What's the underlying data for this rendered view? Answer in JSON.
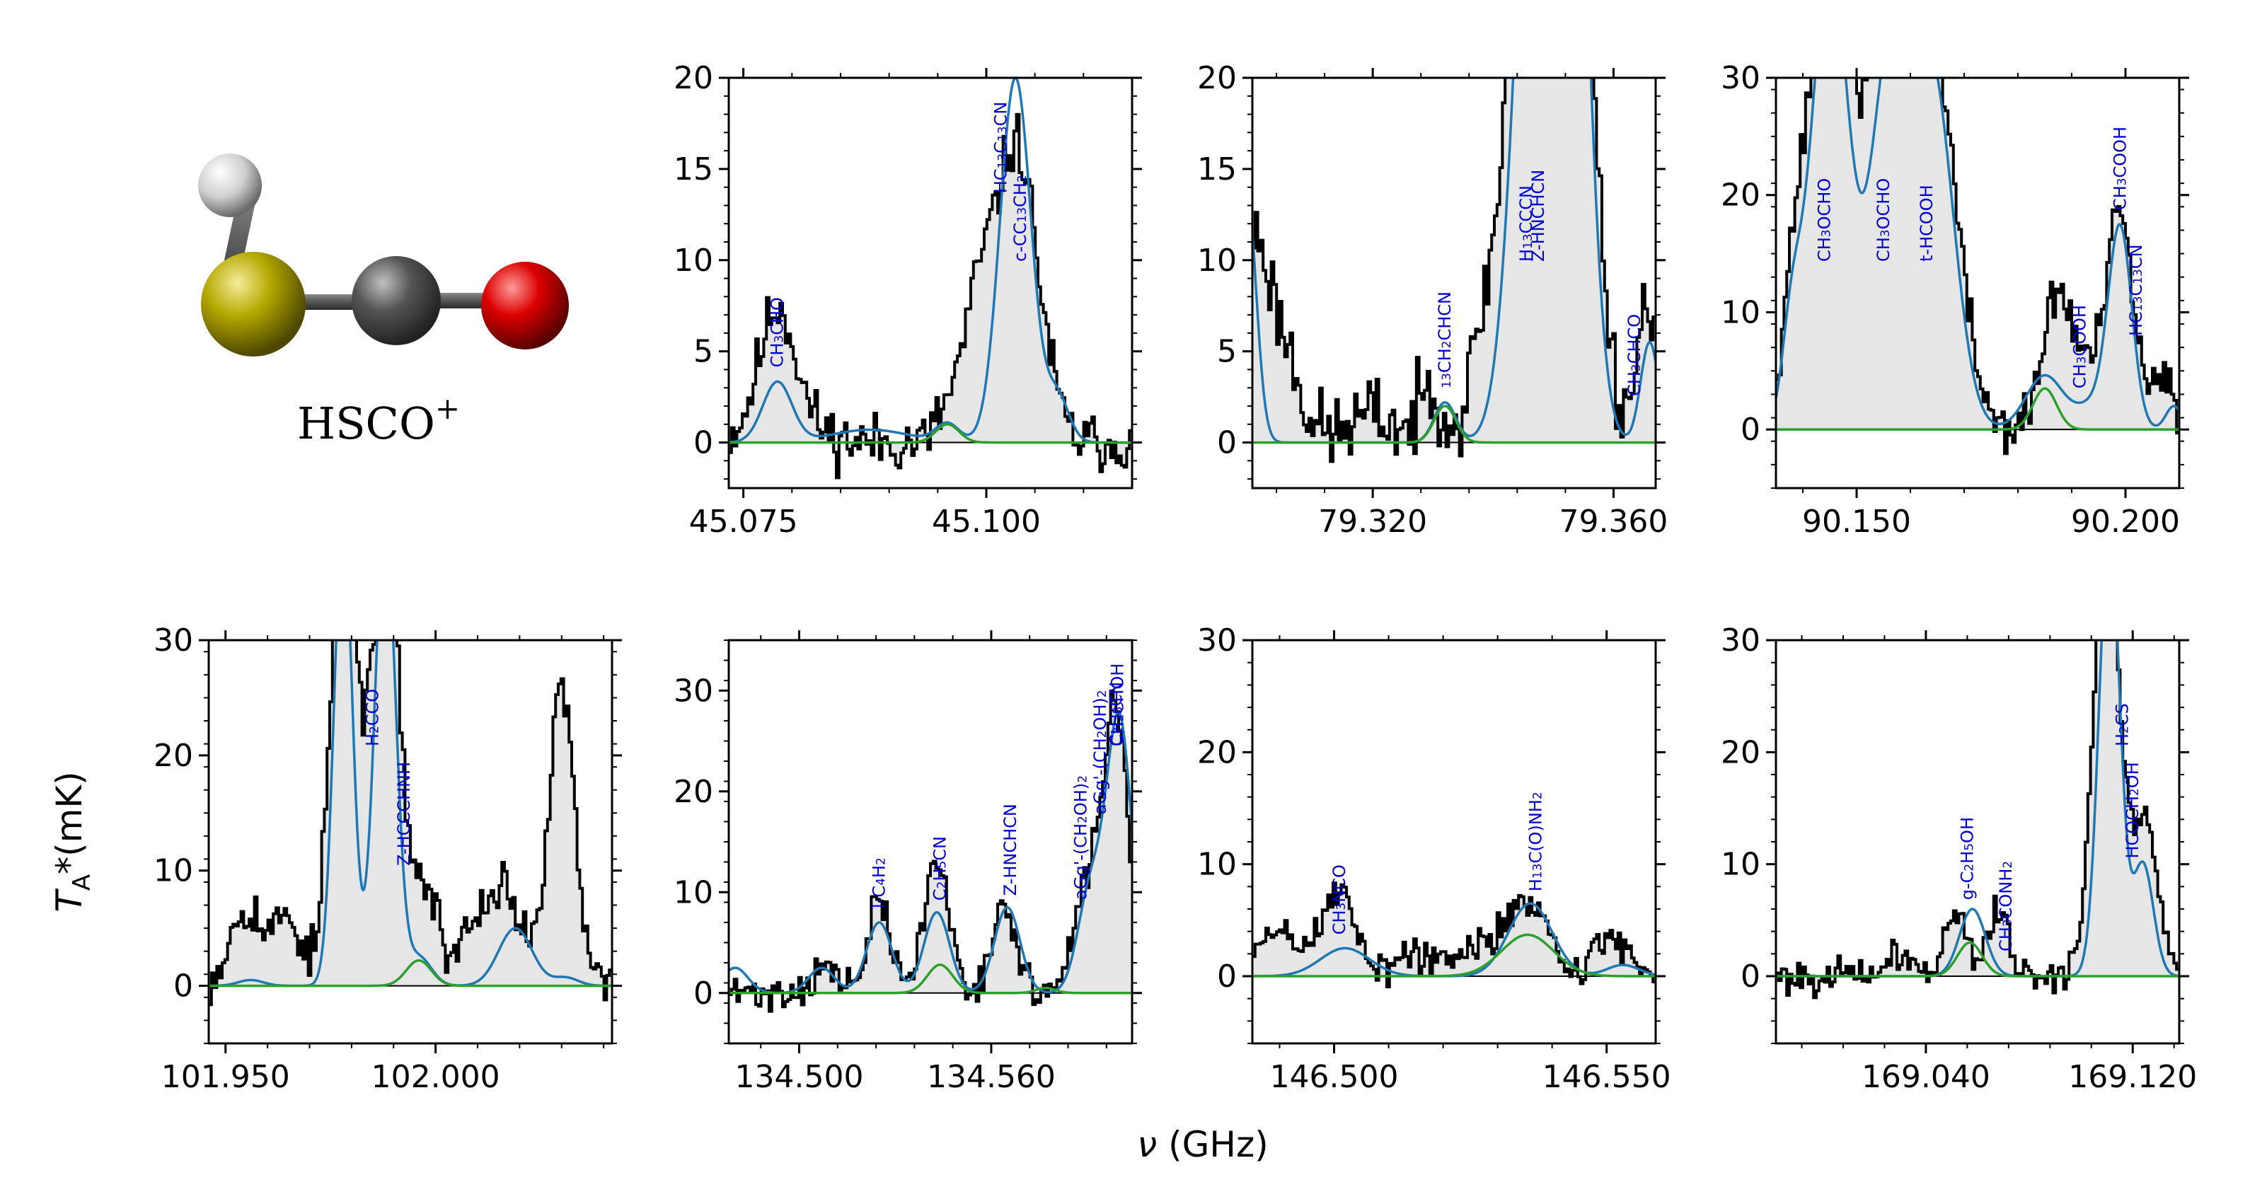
{
  "figure": {
    "molecule_label": "HSCO",
    "molecule_charge": "+",
    "xlabel_symbol": "ν",
    "xlabel_unit": "(GHz)",
    "ylabel_main": "T",
    "ylabel_sub": "A",
    "ylabel_rest": "*(mK)",
    "colors": {
      "observed": "#000000",
      "fill": "#e6e6e6",
      "total_model": "#1f77b4",
      "hsco_model": "#2ca02c",
      "line_labels": "#0000cc",
      "atom_h": "#e0e0e0",
      "atom_s": "#b5a800",
      "atom_c": "#555555",
      "atom_o": "#dd0000"
    }
  },
  "chart_data": [
    {
      "type": "line",
      "xlim": [
        45.0735,
        45.115
      ],
      "ylim": [
        -2.5,
        20
      ],
      "xticks": [
        "45.075",
        "45.100"
      ],
      "yticks": [
        "0",
        "5",
        "10",
        "15",
        "20"
      ],
      "series": [
        {
          "name": "observed",
          "peaks": [
            [
              45.0785,
              6.0,
              0.0018
            ],
            [
              45.079,
              1.5,
              0.003
            ],
            [
              45.096,
              1.2,
              0.0012
            ],
            [
              45.0995,
              8.5,
              0.0018
            ],
            [
              45.1032,
              15.0,
              0.0018
            ],
            [
              45.106,
              2.5,
              0.0015
            ]
          ],
          "noise": 1.6,
          "seed": 11
        },
        {
          "name": "total model",
          "peaks": [
            [
              45.0785,
              3.3,
              0.0015
            ],
            [
              45.088,
              0.7,
              0.004
            ],
            [
              45.096,
              1.0,
              0.0012
            ],
            [
              45.103,
              20.0,
              0.0016
            ],
            [
              45.1073,
              2.5,
              0.0012
            ]
          ]
        },
        {
          "name": "HSCO+ model",
          "peaks": [
            [
              45.096,
              1.0,
              0.0012
            ]
          ]
        }
      ],
      "labels": [
        {
          "x": 45.0785,
          "text": [
            "CH3CHO"
          ]
        },
        {
          "x": 45.1015,
          "text": [
            "HC13C13CN"
          ]
        },
        {
          "x": 45.1035,
          "text": [
            "c-CC13CH2"
          ]
        }
      ]
    },
    {
      "type": "line",
      "xlim": [
        79.3,
        79.367
      ],
      "ylim": [
        -2.5,
        20
      ],
      "xticks": [
        "79.320",
        "79.360"
      ],
      "yticks": [
        "0",
        "5",
        "10",
        "15",
        "20"
      ],
      "series": [
        {
          "name": "observed",
          "peaks": [
            [
              79.3,
              10.0,
              0.0025
            ],
            [
              79.305,
              5.0,
              0.003
            ],
            [
              79.32,
              1.5,
              0.004
            ],
            [
              79.33,
              3.0,
              0.002
            ],
            [
              79.338,
              4.0,
              0.002
            ],
            [
              79.347,
              40.0,
              0.004
            ],
            [
              79.3525,
              40.0,
              0.0035
            ],
            [
              79.366,
              8.0,
              0.002
            ]
          ],
          "noise": 2.2,
          "seed": 23
        },
        {
          "name": "total model",
          "peaks": [
            [
              79.299,
              14.0,
              0.0016
            ],
            [
              79.332,
              2.2,
              0.0018
            ],
            [
              79.3475,
              40.0,
              0.0035
            ],
            [
              79.3525,
              40.0,
              0.003
            ],
            [
              79.366,
              5.5,
              0.0015
            ]
          ]
        },
        {
          "name": "HSCO+ model",
          "peaks": [
            [
              79.332,
              2.0,
              0.0018
            ]
          ]
        }
      ],
      "labels": [
        {
          "x": 79.332,
          "text": [
            "13CH2CHCN"
          ]
        },
        {
          "x": 79.3455,
          "text": [
            "H13CCCN"
          ]
        },
        {
          "x": 79.3475,
          "text": [
            "Z-HNCHCN"
          ]
        },
        {
          "x": 79.3635,
          "text": [
            "CH3CHCO"
          ]
        }
      ]
    },
    {
      "type": "line",
      "xlim": [
        90.135,
        90.21
      ],
      "ylim": [
        -5,
        30
      ],
      "xticks": [
        "90.150",
        "90.200"
      ],
      "yticks": [
        "0",
        "10",
        "20",
        "30"
      ],
      "series": [
        {
          "name": "observed",
          "peaks": [
            [
              90.138,
              8.0,
              0.002
            ],
            [
              90.145,
              42.0,
              0.004
            ],
            [
              90.156,
              32.0,
              0.004
            ],
            [
              90.164,
              32.0,
              0.0045
            ],
            [
              90.187,
              10.5,
              0.0025
            ],
            [
              90.192,
              5.0,
              0.003
            ],
            [
              90.199,
              18.0,
              0.0025
            ],
            [
              90.207,
              4.0,
              0.002
            ]
          ],
          "noise": 2.2,
          "seed": 37
        },
        {
          "name": "total model",
          "peaks": [
            [
              90.138,
              8.0,
              0.0018
            ],
            [
              90.145,
              40.0,
              0.0035
            ],
            [
              90.156,
              30.0,
              0.0035
            ],
            [
              90.164,
              30.0,
              0.004
            ],
            [
              90.185,
              4.6,
              0.0035
            ],
            [
              90.194,
              2.0,
              0.003
            ],
            [
              90.199,
              17.0,
              0.0022
            ],
            [
              90.209,
              2.0,
              0.0015
            ]
          ]
        },
        {
          "name": "HSCO+ model",
          "peaks": [
            [
              90.185,
              3.5,
              0.0022
            ]
          ]
        }
      ],
      "labels": [
        {
          "x": 90.144,
          "text": [
            "CH3OCHO"
          ]
        },
        {
          "x": 90.155,
          "text": [
            "CH3OCHO"
          ]
        },
        {
          "x": 90.163,
          "text": [
            "t-HCOOH"
          ]
        },
        {
          "x": 90.1915,
          "text": [
            "CH3COOH"
          ]
        },
        {
          "x": 90.199,
          "text": [
            "CH3COOH"
          ]
        },
        {
          "x": 90.202,
          "text": [
            "HC13C13CN"
          ]
        }
      ]
    },
    {
      "type": "line",
      "xlim": [
        101.946,
        102.042
      ],
      "ylim": [
        -5,
        30
      ],
      "xticks": [
        "101.950",
        "102.000"
      ],
      "yticks": [
        "0",
        "10",
        "20",
        "30"
      ],
      "series": [
        {
          "name": "observed",
          "peaks": [
            [
              101.955,
              7.0,
              0.004
            ],
            [
              101.965,
              6.0,
              0.003
            ],
            [
              101.978,
              40.0,
              0.003
            ],
            [
              101.988,
              40.0,
              0.0035
            ],
            [
              101.998,
              8.0,
              0.003
            ],
            [
              102.008,
              4.0,
              0.003
            ],
            [
              102.016,
              9.0,
              0.004
            ],
            [
              102.03,
              26.0,
              0.003
            ]
          ],
          "noise": 2.2,
          "seed": 53
        },
        {
          "name": "total model",
          "peaks": [
            [
              101.956,
              0.5,
              0.003
            ],
            [
              101.978,
              40.0,
              0.0022
            ],
            [
              101.988,
              40.0,
              0.0025
            ],
            [
              101.996,
              2.5,
              0.003
            ],
            [
              102.019,
              5.0,
              0.004
            ],
            [
              102.031,
              0.7,
              0.003
            ]
          ]
        },
        {
          "name": "HSCO+ model",
          "peaks": [
            [
              101.996,
              2.2,
              0.003
            ]
          ]
        }
      ],
      "labels": [
        {
          "x": 101.985,
          "text": [
            "H2CCO"
          ]
        },
        {
          "x": 101.9925,
          "text": [
            "Z-HCCCHNH"
          ]
        }
      ]
    },
    {
      "type": "line",
      "xlim": [
        134.478,
        134.604
      ],
      "ylim": [
        -5,
        35
      ],
      "xticks": [
        "134.500",
        "134.560"
      ],
      "yticks": [
        "0",
        "10",
        "20",
        "30"
      ],
      "series": [
        {
          "name": "observed",
          "peaks": [
            [
              134.508,
              2.5,
              0.004
            ],
            [
              134.525,
              9.0,
              0.0035
            ],
            [
              134.543,
              13.0,
              0.004
            ],
            [
              134.564,
              8.0,
              0.004
            ],
            [
              134.59,
              10.0,
              0.004
            ],
            [
              134.599,
              28.0,
              0.004
            ]
          ],
          "noise": 1.8,
          "seed": 71
        },
        {
          "name": "total model",
          "peaks": [
            [
              134.48,
              2.5,
              0.004
            ],
            [
              134.507,
              2.5,
              0.004
            ],
            [
              134.525,
              7.0,
              0.004
            ],
            [
              134.543,
              8.0,
              0.004
            ],
            [
              134.565,
              8.5,
              0.004
            ],
            [
              134.591,
              10.0,
              0.004
            ],
            [
              134.6,
              27.0,
              0.004
            ]
          ]
        },
        {
          "name": "HSCO+ model",
          "peaks": [
            [
              134.544,
              2.8,
              0.004
            ],
            [
              134.577,
              0.5,
              0.003
            ]
          ]
        }
      ],
      "labels": [
        {
          "x": 134.525,
          "text": [
            "l-C4H2"
          ]
        },
        {
          "x": 134.544,
          "text": [
            "C2H5CN"
          ]
        },
        {
          "x": 134.566,
          "text": [
            "Z-HNCHCN"
          ]
        },
        {
          "x": 134.588,
          "text": [
            "aGg'-(CH2OH)2"
          ]
        },
        {
          "x": 134.594,
          "text": [
            "aGg'-(CH2OH)2"
          ]
        },
        {
          "x": 134.599,
          "text": [
            "C2H3CN"
          ]
        },
        {
          "x": 134.5995,
          "text": [
            "CH2CHOH"
          ]
        }
      ]
    },
    {
      "type": "line",
      "xlim": [
        146.485,
        146.559
      ],
      "ylim": [
        -6,
        30
      ],
      "xticks": [
        "146.500",
        "146.550"
      ],
      "yticks": [
        "0",
        "10",
        "20",
        "30"
      ],
      "series": [
        {
          "name": "observed",
          "peaks": [
            [
              146.49,
              4.0,
              0.004
            ],
            [
              146.501,
              7.5,
              0.003
            ],
            [
              146.515,
              2.0,
              0.004
            ],
            [
              146.526,
              2.0,
              0.003
            ],
            [
              146.535,
              7.0,
              0.004
            ],
            [
              146.551,
              3.5,
              0.003
            ]
          ],
          "noise": 1.8,
          "seed": 89
        },
        {
          "name": "total model",
          "peaks": [
            [
              146.502,
              2.5,
              0.0045
            ],
            [
              146.536,
              6.5,
              0.004
            ],
            [
              146.553,
              1.0,
              0.003
            ]
          ]
        },
        {
          "name": "HSCO+ model",
          "peaks": [
            [
              146.5355,
              3.7,
              0.0048
            ]
          ]
        }
      ],
      "labels": [
        {
          "x": 146.501,
          "text": [
            "CH3NCO"
          ]
        },
        {
          "x": 146.537,
          "text": [
            "H13C(O)NH2"
          ]
        }
      ]
    },
    {
      "type": "line",
      "xlim": [
        168.982,
        169.138
      ],
      "ylim": [
        -6,
        30
      ],
      "xticks": [
        "169.040",
        "169.120"
      ],
      "yticks": [
        "0",
        "10",
        "20",
        "30"
      ],
      "series": [
        {
          "name": "observed",
          "peaks": [
            [
              169.03,
              2.0,
              0.005
            ],
            [
              169.052,
              6.0,
              0.004
            ],
            [
              169.068,
              6.0,
              0.004
            ],
            [
              169.11,
              40.0,
              0.005
            ],
            [
              169.125,
              14.0,
              0.005
            ]
          ],
          "noise": 1.5,
          "seed": 101
        },
        {
          "name": "total model",
          "peaks": [
            [
              169.058,
              6.0,
              0.005
            ],
            [
              169.111,
              40.0,
              0.004
            ],
            [
              169.124,
              10.0,
              0.004
            ]
          ]
        },
        {
          "name": "HSCO+ model",
          "peaks": [
            [
              169.057,
              3.0,
              0.0048
            ]
          ]
        }
      ],
      "labels": [
        {
          "x": 169.056,
          "text": [
            "g-C2H5OH"
          ]
        },
        {
          "x": 169.071,
          "text": [
            "CH3CONH2"
          ]
        },
        {
          "x": 169.116,
          "text": [
            "H2CS"
          ]
        },
        {
          "x": 169.12,
          "text": [
            "HCOCH2OH"
          ]
        }
      ]
    }
  ]
}
